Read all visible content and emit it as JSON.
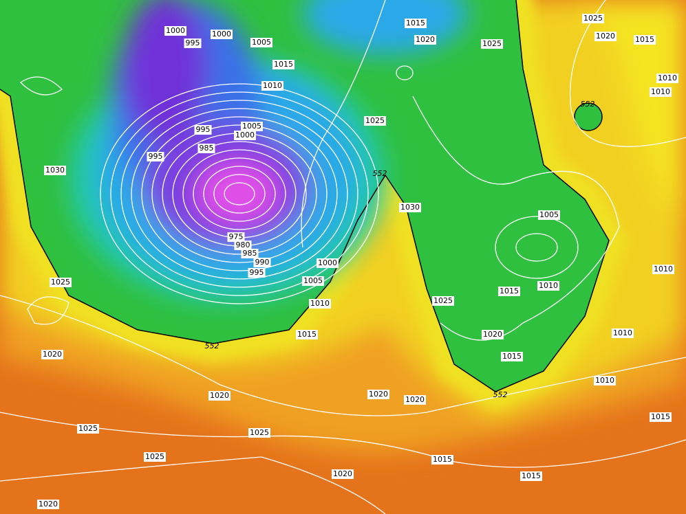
{
  "isobar_labels": [
    "1000",
    "995",
    "1000",
    "1005",
    "1015",
    "1020",
    "1025",
    "1025",
    "1020",
    "1015",
    "1010",
    "1010",
    "1015",
    "1010",
    "1025",
    "1005",
    "1000",
    "995",
    "985",
    "995",
    "1030",
    "1030",
    "1005",
    "1000",
    "990",
    "995",
    "980",
    "985",
    "975",
    "1005",
    "1010",
    "1015",
    "1010",
    "1025",
    "1010",
    "1025",
    "1015",
    "1020",
    "1010",
    "1015",
    "1020",
    "1010",
    "1020",
    "1020",
    "1020",
    "1015",
    "1025",
    "1025",
    "1025",
    "1015",
    "1020",
    "1015",
    "1020"
  ],
  "thickness_labels": [
    "552",
    "552",
    "552",
    "552"
  ]
}
